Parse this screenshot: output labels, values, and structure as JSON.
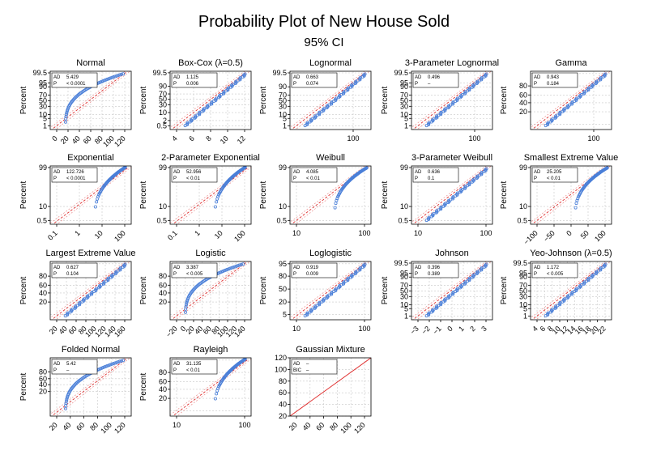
{
  "page": {
    "title": "Probability Plot of New House Sold",
    "subtitle": "95% CI"
  },
  "chart_data": [
    {
      "type": "scatter",
      "title": "Normal",
      "ylabel": "Percent",
      "xticks": [
        "0",
        "20",
        "40",
        "60",
        "80",
        "100",
        "120"
      ],
      "xlim": [
        -10,
        130
      ],
      "yticks": [
        "1",
        "5",
        "10",
        "30",
        "50",
        "70",
        "90",
        "95",
        "99.5"
      ],
      "yprobs": [
        1,
        5,
        10,
        30,
        50,
        70,
        90,
        95,
        99.5
      ],
      "shape": "convex",
      "fit": "line",
      "stats": [
        {
          "label": "AD",
          "value": "5.429"
        },
        {
          "label": "P",
          "value": "< 0.0001"
        }
      ]
    },
    {
      "type": "scatter",
      "title": "Box-Cox (λ=0.5)",
      "ylabel": "Percent",
      "xticks": [
        "4",
        "6",
        "8",
        "10",
        "12"
      ],
      "xlim": [
        2.5,
        12.5
      ],
      "yticks": [
        "0.5",
        "2",
        "10",
        "30",
        "50",
        "70",
        "90",
        "99.5"
      ],
      "yprobs": [
        0.5,
        2,
        10,
        30,
        50,
        70,
        90,
        99.5
      ],
      "shape": "straight",
      "fit": "line",
      "stats": [
        {
          "label": "AD",
          "value": "1.125"
        },
        {
          "label": "P",
          "value": "0.006"
        }
      ]
    },
    {
      "type": "scatter",
      "title": "Lognormal",
      "ylabel": "Percent",
      "xticks": [
        "100"
      ],
      "xlim": [
        10,
        200
      ],
      "yticks": [
        "1",
        "5",
        "10",
        "30",
        "50",
        "70",
        "90",
        "99.5"
      ],
      "yprobs": [
        1,
        5,
        10,
        30,
        50,
        70,
        90,
        99.5
      ],
      "shape": "straight",
      "fit": "line",
      "stats": [
        {
          "label": "AD",
          "value": "0.663"
        },
        {
          "label": "P",
          "value": "0.074"
        }
      ]
    },
    {
      "type": "scatter",
      "title": "3-Parameter Lognormal",
      "ylabel": "Percent",
      "xticks": [
        "100"
      ],
      "xlim": [
        10,
        200
      ],
      "yticks": [
        "1",
        "5",
        "10",
        "30",
        "50",
        "70",
        "90",
        "95",
        "99.5"
      ],
      "yprobs": [
        1,
        5,
        10,
        30,
        50,
        70,
        90,
        95,
        99.5
      ],
      "shape": "straight",
      "fit": "line",
      "stats": [
        {
          "label": "AD",
          "value": "0.496"
        },
        {
          "label": "P",
          "value": "–"
        }
      ]
    },
    {
      "type": "scatter",
      "title": "Gamma",
      "ylabel": "Percent",
      "xticks": [
        "100"
      ],
      "xlim": [
        10,
        200
      ],
      "yticks": [
        "20",
        "40",
        "60",
        "80"
      ],
      "yprobs": [
        5,
        20,
        40,
        60,
        80,
        95
      ],
      "shape": "straight",
      "fit": "line",
      "stats": [
        {
          "label": "AD",
          "value": "0.943"
        },
        {
          "label": "P",
          "value": "0.184"
        }
      ]
    },
    {
      "type": "scatter",
      "title": "Exponential",
      "ylabel": "Percent",
      "xticks": [
        "0.1",
        "1",
        "10",
        "100"
      ],
      "xlim": [
        0.03,
        300
      ],
      "yticks": [
        "0.5",
        "10",
        "99"
      ],
      "yprobs": [
        0.5,
        10,
        99
      ],
      "shape": "cliff",
      "fit": "line",
      "stats": [
        {
          "label": "AD",
          "value": "122.726"
        },
        {
          "label": "P",
          "value": "< 0.0001"
        }
      ]
    },
    {
      "type": "scatter",
      "title": "2-Parameter Exponential",
      "ylabel": "Percent",
      "xticks": [
        "0.1",
        "1",
        "10",
        "100"
      ],
      "xlim": [
        0.03,
        300
      ],
      "yticks": [
        "0.5",
        "10",
        "99"
      ],
      "yprobs": [
        0.5,
        10,
        99
      ],
      "shape": "cliff",
      "fit": "line",
      "stats": [
        {
          "label": "AD",
          "value": "52.956"
        },
        {
          "label": "P",
          "value": "< 0.01"
        }
      ]
    },
    {
      "type": "scatter",
      "title": "Weibull",
      "ylabel": "Percent",
      "xticks": [
        "10",
        "100"
      ],
      "xlim": [
        5,
        150
      ],
      "yticks": [
        "0.5",
        "10",
        "99"
      ],
      "yprobs": [
        0.5,
        10,
        99
      ],
      "shape": "concave",
      "fit": "line",
      "stats": [
        {
          "label": "AD",
          "value": "4.085"
        },
        {
          "label": "P",
          "value": "< 0.01"
        }
      ]
    },
    {
      "type": "scatter",
      "title": "3-Parameter Weibull",
      "ylabel": "Percent",
      "xticks": [
        "10",
        "100"
      ],
      "xlim": [
        0.3,
        150
      ],
      "yticks": [
        "0.5",
        "10",
        "99"
      ],
      "yprobs": [
        0.5,
        10,
        99
      ],
      "shape": "straight",
      "fit": "line",
      "stats": [
        {
          "label": "AD",
          "value": "0.636"
        },
        {
          "label": "P",
          "value": "0.1"
        }
      ]
    },
    {
      "type": "scatter",
      "title": "Smallest Extreme Value",
      "ylabel": "Percent",
      "xticks": [
        "−100",
        "−50",
        "0",
        "50",
        "100"
      ],
      "xlim": [
        -130,
        130
      ],
      "yticks": [
        "0.5",
        "10",
        "99"
      ],
      "yprobs": [
        0.5,
        10,
        99
      ],
      "shape": "concave",
      "fit": "line",
      "stats": [
        {
          "label": "AD",
          "value": "25.205"
        },
        {
          "label": "P",
          "value": "< 0.01"
        }
      ]
    },
    {
      "type": "scatter",
      "title": "Largest Extreme Value",
      "ylabel": "Percent",
      "xticks": [
        "20",
        "40",
        "60",
        "80",
        "100",
        "120",
        "140",
        "160"
      ],
      "xlim": [
        0,
        175
      ],
      "yticks": [
        "20",
        "40",
        "60",
        "80"
      ],
      "yprobs": [
        5,
        20,
        40,
        60,
        80,
        95
      ],
      "shape": "straight",
      "fit": "line",
      "stats": [
        {
          "label": "AD",
          "value": "0.627"
        },
        {
          "label": "P",
          "value": "0.104"
        }
      ]
    },
    {
      "type": "scatter",
      "title": "Logistic",
      "ylabel": "Percent",
      "xticks": [
        "−20",
        "0",
        "20",
        "40",
        "60",
        "80",
        "100",
        "120",
        "140"
      ],
      "xlim": [
        -30,
        145
      ],
      "yticks": [
        "20",
        "40",
        "60",
        "80"
      ],
      "yprobs": [
        5,
        20,
        40,
        60,
        80,
        95
      ],
      "shape": "convex",
      "fit": "line",
      "stats": [
        {
          "label": "AD",
          "value": "3.387"
        },
        {
          "label": "P",
          "value": "< 0.005"
        }
      ]
    },
    {
      "type": "scatter",
      "title": "Loglogistic",
      "ylabel": "Percent",
      "xticks": [
        "10",
        "100"
      ],
      "xlim": [
        10,
        200
      ],
      "yticks": [
        "5",
        "20",
        "50",
        "80",
        "95"
      ],
      "yprobs": [
        5,
        20,
        50,
        80,
        95
      ],
      "shape": "straight",
      "fit": "line",
      "stats": [
        {
          "label": "AD",
          "value": "0.919"
        },
        {
          "label": "P",
          "value": "0.009"
        }
      ]
    },
    {
      "type": "scatter",
      "title": "Johnson",
      "ylabel": "Percent",
      "xticks": [
        "−3",
        "−2",
        "−1",
        "0",
        "1",
        "2",
        "3"
      ],
      "xlim": [
        -3.5,
        3.5
      ],
      "yticks": [
        "1",
        "5",
        "10",
        "30",
        "50",
        "70",
        "90",
        "95",
        "99.5"
      ],
      "yprobs": [
        1,
        5,
        10,
        30,
        50,
        70,
        90,
        95,
        99.5
      ],
      "shape": "straight",
      "fit": "line",
      "stats": [
        {
          "label": "AD",
          "value": "0.396"
        },
        {
          "label": "P",
          "value": "0.389"
        }
      ]
    },
    {
      "type": "scatter",
      "title": "Yeo-Johnson (λ=0.5)",
      "ylabel": "Percent",
      "xticks": [
        "4",
        "6",
        "8",
        "10",
        "12",
        "14",
        "16",
        "18",
        "20",
        "22"
      ],
      "xlim": [
        3,
        22.5
      ],
      "yticks": [
        "1",
        "5",
        "10",
        "30",
        "50",
        "70",
        "90",
        "95",
        "99.5"
      ],
      "yprobs": [
        1,
        5,
        10,
        30,
        50,
        70,
        90,
        95,
        99.5
      ],
      "shape": "straight",
      "fit": "line",
      "stats": [
        {
          "label": "AD",
          "value": "1.172"
        },
        {
          "label": "P",
          "value": "< 0.005"
        }
      ]
    },
    {
      "type": "scatter",
      "title": "Folded Normal",
      "ylabel": "Percent",
      "xticks": [
        "20",
        "40",
        "60",
        "80",
        "100",
        "120"
      ],
      "xlim": [
        5,
        130
      ],
      "yticks": [
        "0",
        "20",
        "40",
        "60",
        "80"
      ],
      "yprobs": [
        0.5,
        20,
        40,
        60,
        80,
        97
      ],
      "shape": "convex",
      "fit": "line",
      "stats": [
        {
          "label": "AD",
          "value": "5.42"
        },
        {
          "label": "P",
          "value": "–"
        }
      ]
    },
    {
      "type": "scatter",
      "title": "Rayleigh",
      "ylabel": "Percent",
      "xticks": [
        "10",
        "100"
      ],
      "xlim": [
        1,
        150
      ],
      "yticks": [
        "20",
        "40",
        "60",
        "80"
      ],
      "yprobs": [
        5,
        20,
        40,
        60,
        80,
        95
      ],
      "shape": "cliff",
      "fit": "line",
      "stats": [
        {
          "label": "AD",
          "value": "31.135"
        },
        {
          "label": "P",
          "value": "< 0.01"
        }
      ]
    },
    {
      "type": "scatter",
      "title": "Gaussian Mixture",
      "ylabel": "",
      "xticks": [
        "20",
        "40",
        "60",
        "80",
        "100",
        "120"
      ],
      "xlim": [
        10,
        130
      ],
      "yticks": [
        "20",
        "40",
        "60",
        "80",
        "100",
        "120"
      ],
      "yprobs": [
        20,
        40,
        60,
        80,
        100,
        120
      ],
      "shape": "none",
      "fit": "diagonal",
      "stats": [
        {
          "label": "AD",
          "value": "–"
        },
        {
          "label": "BIC",
          "value": "–"
        }
      ]
    }
  ],
  "colors": {
    "points": "#4a7fd8",
    "fit": "#e03030",
    "ci": "#e88080",
    "grid": "#c8c8c8",
    "statbox_border": "#000000"
  }
}
